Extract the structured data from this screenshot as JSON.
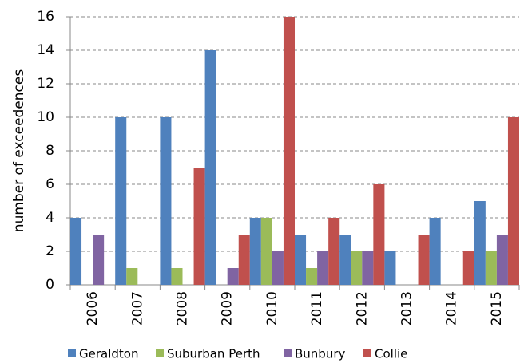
{
  "chart_data": {
    "type": "bar",
    "y_label": "number of exceedences",
    "categories": [
      "2006",
      "2007",
      "2008",
      "2009",
      "2010",
      "2011",
      "2012",
      "2013",
      "2014",
      "2015"
    ],
    "series": [
      {
        "name": "Geraldton",
        "color": "#4f81bd",
        "values": [
          4,
          10,
          10,
          14,
          4,
          3,
          3,
          2,
          4,
          5
        ]
      },
      {
        "name": "Suburban Perth",
        "color": "#9bbb59",
        "values": [
          0,
          1,
          1,
          0,
          4,
          1,
          2,
          0,
          0,
          2
        ]
      },
      {
        "name": "Bunbury",
        "color": "#8064a2",
        "values": [
          3,
          0,
          0,
          1,
          2,
          2,
          2,
          0,
          0,
          3
        ]
      },
      {
        "name": "Collie",
        "color": "#c0504d",
        "values": [
          0,
          0,
          7,
          3,
          16,
          4,
          6,
          3,
          2,
          10
        ]
      }
    ],
    "ylim": [
      0,
      16
    ],
    "yticks": [
      0,
      2,
      4,
      6,
      8,
      10,
      12,
      14,
      16
    ],
    "grid": true,
    "legend": "bottom"
  }
}
